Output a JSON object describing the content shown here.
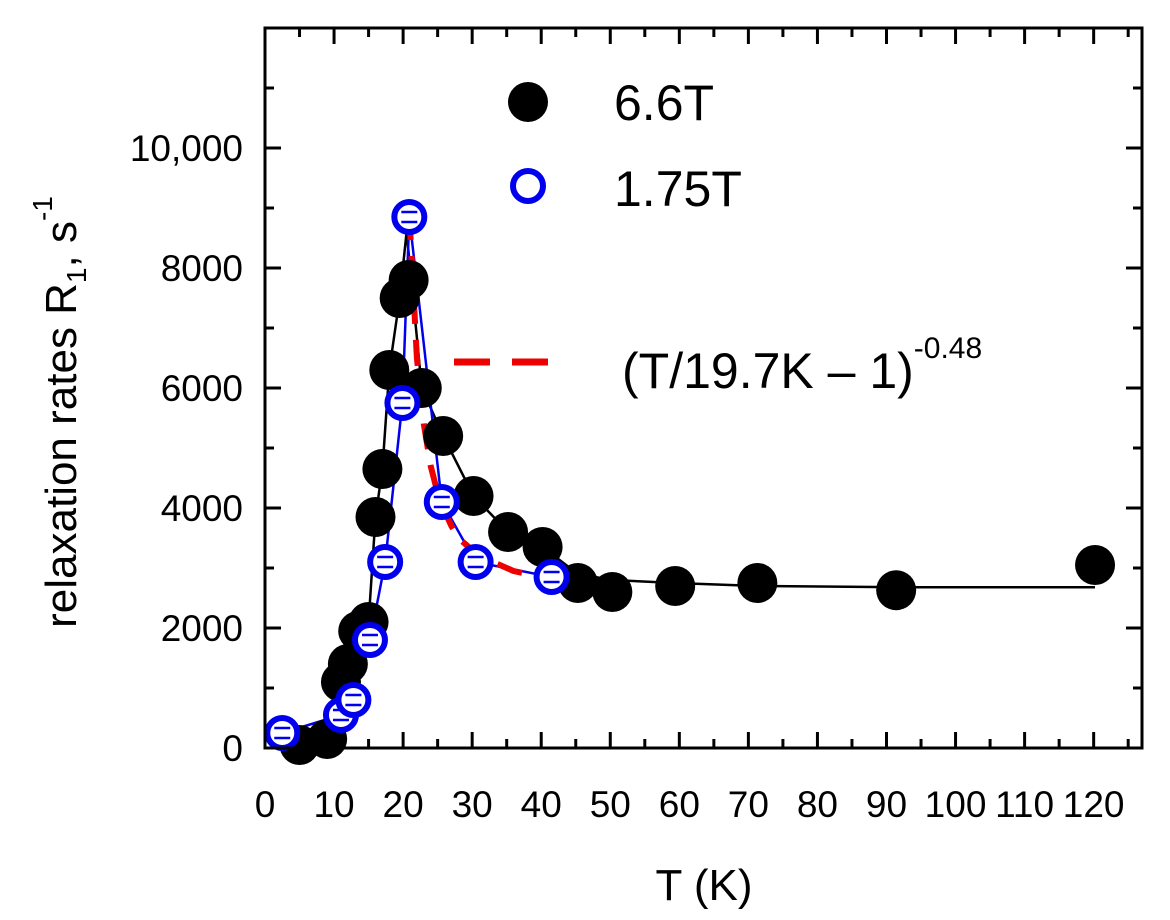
{
  "chart_data": {
    "type": "scatter",
    "xlabel": "T (K)",
    "ylabel_main": "relaxation rates R",
    "ylabel_subscript": "1",
    "ylabel_unit": ", s",
    "ylabel_superscript": "-1",
    "xlim": [
      0,
      127
    ],
    "ylim": [
      0,
      12000
    ],
    "xticks": [
      0,
      10,
      20,
      30,
      40,
      50,
      60,
      70,
      80,
      90,
      100,
      110,
      120
    ],
    "xtick_labels": [
      "0",
      "10",
      "20",
      "30",
      "40",
      "50",
      "60",
      "70",
      "80",
      "90",
      "100",
      "110",
      "120"
    ],
    "yticks": [
      0,
      2000,
      4000,
      6000,
      8000,
      10000
    ],
    "ytick_labels": [
      "0",
      "2000",
      "4000",
      "6000",
      "8000",
      "10,000"
    ],
    "legend": {
      "position": "top-center",
      "entries": [
        "6.6T",
        "1.75T"
      ]
    },
    "annotation": {
      "text_main": "(T/19.7K – 1)",
      "text_superscript": "-0.48"
    },
    "colors": {
      "series_6_6T": "#000000",
      "series_1_75T": "#0000ee",
      "fit": "#ee0000"
    },
    "series": [
      {
        "name": "6.6T",
        "marker": "filled-circle",
        "x": [
          5,
          9,
          11,
          12,
          13.5,
          15,
          16,
          17,
          18,
          19.5,
          20.8,
          22.7,
          25.8,
          30.2,
          35.2,
          40.2,
          45.3,
          50.3,
          59.4,
          71.3,
          91.4,
          120.2
        ],
        "y": [
          50,
          150,
          1100,
          1400,
          1950,
          2100,
          3850,
          4650,
          6300,
          7500,
          7800,
          6000,
          5200,
          4200,
          3600,
          3350,
          2750,
          2600,
          2700,
          2750,
          2630,
          3050
        ]
      },
      {
        "name": "1.75T",
        "marker": "open-circle",
        "x": [
          2.5,
          11,
          12.8,
          15.2,
          17.4,
          19.9,
          20.9,
          25.6,
          30.5,
          41.5
        ],
        "y": [
          250,
          550,
          800,
          1800,
          3100,
          5750,
          8850,
          4100,
          3100,
          2850
        ]
      }
    ],
    "guide_line_6_6T": {
      "x": [
        5,
        9,
        11,
        12,
        13.5,
        15,
        16,
        17,
        18,
        19.5,
        20.5,
        22.7,
        25.8,
        30.2,
        35.2,
        40.2,
        45.3,
        50.3,
        59.4,
        71.3,
        91.4,
        120.2
      ],
      "y": [
        50,
        150,
        1100,
        1400,
        1950,
        2100,
        3850,
        4650,
        6300,
        7500,
        8600,
        6000,
        5200,
        4200,
        3600,
        3350,
        2900,
        2800,
        2750,
        2700,
        2680,
        2680
      ]
    },
    "fit_curve": {
      "name": "(T/19.7K – 1)^-0.48",
      "x": [
        20.9,
        22,
        23,
        24,
        25,
        26,
        27,
        28,
        30,
        33,
        36,
        40,
        41.5
      ],
      "y": [
        8900,
        6500,
        5400,
        4700,
        4250,
        3950,
        3700,
        3500,
        3300,
        3100,
        2950,
        2850,
        2800
      ]
    }
  }
}
